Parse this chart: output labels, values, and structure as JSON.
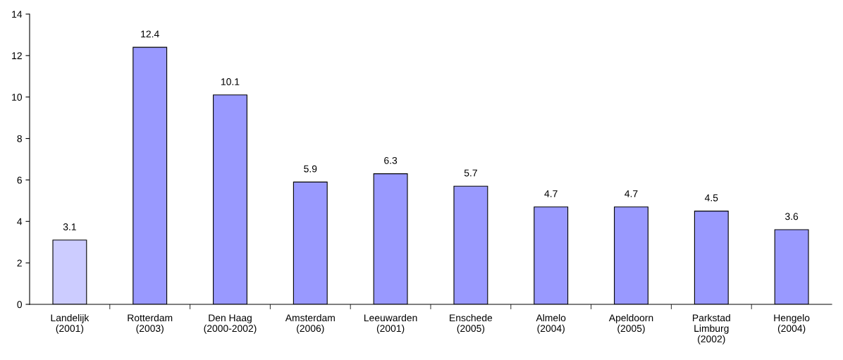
{
  "chart_data": {
    "type": "bar",
    "categories": [
      "Landelijk\n(2001)",
      "Rotterdam\n(2003)",
      "Den Haag\n(2000-2002)",
      "Amsterdam\n(2006)",
      "Leeuwarden\n(2001)",
      "Enschede\n(2005)",
      "Almelo\n(2004)",
      "Apeldoorn\n(2005)",
      "Parkstad\nLimburg\n(2002)",
      "Hengelo\n(2004)"
    ],
    "values": [
      3.1,
      12.4,
      10.1,
      5.9,
      6.3,
      5.7,
      4.7,
      4.7,
      4.5,
      3.6
    ],
    "colors": [
      "#ccccff",
      "#9999ff",
      "#9999ff",
      "#9999ff",
      "#9999ff",
      "#9999ff",
      "#9999ff",
      "#9999ff",
      "#9999ff",
      "#9999ff"
    ],
    "ylim": [
      0,
      14
    ],
    "yticks": [
      0,
      2,
      4,
      6,
      8,
      10,
      12,
      14
    ],
    "data_labels": true
  }
}
